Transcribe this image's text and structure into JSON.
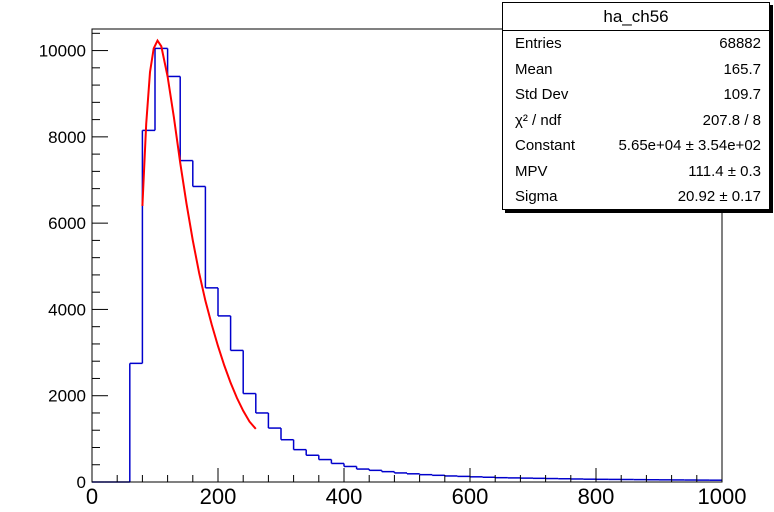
{
  "chart_data": {
    "type": "histogram",
    "title": "",
    "xlabel": "",
    "ylabel": "",
    "xlim": [
      0,
      1000
    ],
    "ylim": [
      0,
      10500
    ],
    "bin_width": 20,
    "x_ticks": [
      0,
      200,
      400,
      600,
      800,
      1000
    ],
    "y_ticks": [
      0,
      2000,
      4000,
      6000,
      8000,
      10000
    ],
    "bins": [
      {
        "x": 0,
        "y": 0
      },
      {
        "x": 20,
        "y": 0
      },
      {
        "x": 40,
        "y": 0
      },
      {
        "x": 60,
        "y": 2750
      },
      {
        "x": 80,
        "y": 8150
      },
      {
        "x": 100,
        "y": 10050
      },
      {
        "x": 120,
        "y": 9400
      },
      {
        "x": 140,
        "y": 7450
      },
      {
        "x": 160,
        "y": 6850
      },
      {
        "x": 180,
        "y": 4500
      },
      {
        "x": 200,
        "y": 3850
      },
      {
        "x": 220,
        "y": 3050
      },
      {
        "x": 240,
        "y": 2050
      },
      {
        "x": 260,
        "y": 1600
      },
      {
        "x": 280,
        "y": 1250
      },
      {
        "x": 300,
        "y": 980
      },
      {
        "x": 320,
        "y": 750
      },
      {
        "x": 340,
        "y": 620
      },
      {
        "x": 360,
        "y": 520
      },
      {
        "x": 380,
        "y": 430
      },
      {
        "x": 400,
        "y": 360
      },
      {
        "x": 420,
        "y": 300
      },
      {
        "x": 440,
        "y": 270
      },
      {
        "x": 460,
        "y": 240
      },
      {
        "x": 480,
        "y": 210
      },
      {
        "x": 500,
        "y": 190
      },
      {
        "x": 520,
        "y": 170
      },
      {
        "x": 540,
        "y": 155
      },
      {
        "x": 560,
        "y": 140
      },
      {
        "x": 580,
        "y": 130
      },
      {
        "x": 600,
        "y": 120
      },
      {
        "x": 620,
        "y": 110
      },
      {
        "x": 640,
        "y": 100
      },
      {
        "x": 660,
        "y": 95
      },
      {
        "x": 680,
        "y": 90
      },
      {
        "x": 700,
        "y": 85
      },
      {
        "x": 720,
        "y": 80
      },
      {
        "x": 740,
        "y": 75
      },
      {
        "x": 760,
        "y": 70
      },
      {
        "x": 780,
        "y": 65
      },
      {
        "x": 800,
        "y": 62
      },
      {
        "x": 820,
        "y": 60
      },
      {
        "x": 840,
        "y": 58
      },
      {
        "x": 860,
        "y": 55
      },
      {
        "x": 880,
        "y": 52
      },
      {
        "x": 900,
        "y": 50
      },
      {
        "x": 920,
        "y": 48
      },
      {
        "x": 940,
        "y": 46
      },
      {
        "x": 960,
        "y": 44
      },
      {
        "x": 980,
        "y": 42
      }
    ],
    "fit": {
      "function": "landau",
      "x_range": [
        80,
        260
      ],
      "points": [
        {
          "x": 80,
          "y": 6400
        },
        {
          "x": 86,
          "y": 8300
        },
        {
          "x": 92,
          "y": 9500
        },
        {
          "x": 98,
          "y": 10050
        },
        {
          "x": 104,
          "y": 10230
        },
        {
          "x": 110,
          "y": 10100
        },
        {
          "x": 120,
          "y": 9400
        },
        {
          "x": 130,
          "y": 8450
        },
        {
          "x": 140,
          "y": 7400
        },
        {
          "x": 150,
          "y": 6450
        },
        {
          "x": 160,
          "y": 5600
        },
        {
          "x": 170,
          "y": 4850
        },
        {
          "x": 180,
          "y": 4200
        },
        {
          "x": 190,
          "y": 3650
        },
        {
          "x": 200,
          "y": 3150
        },
        {
          "x": 210,
          "y": 2700
        },
        {
          "x": 220,
          "y": 2300
        },
        {
          "x": 230,
          "y": 1950
        },
        {
          "x": 240,
          "y": 1650
        },
        {
          "x": 250,
          "y": 1400
        },
        {
          "x": 260,
          "y": 1230
        }
      ]
    },
    "histogram_color": "#0000cc",
    "fit_color": "#ff0000"
  },
  "stats": {
    "title": "ha_ch56",
    "rows": [
      {
        "label": "Entries",
        "value": "68882"
      },
      {
        "label": "Mean",
        "value": "165.7"
      },
      {
        "label": "Std Dev",
        "value": "109.7"
      },
      {
        "label": "χ² / ndf",
        "value": "207.8 / 8"
      },
      {
        "label": "Constant",
        "value": "5.65e+04 ± 3.54e+02"
      },
      {
        "label": "MPV",
        "value": "111.4 ± 0.3"
      },
      {
        "label": "Sigma",
        "value": "20.92 ± 0.17"
      }
    ]
  }
}
